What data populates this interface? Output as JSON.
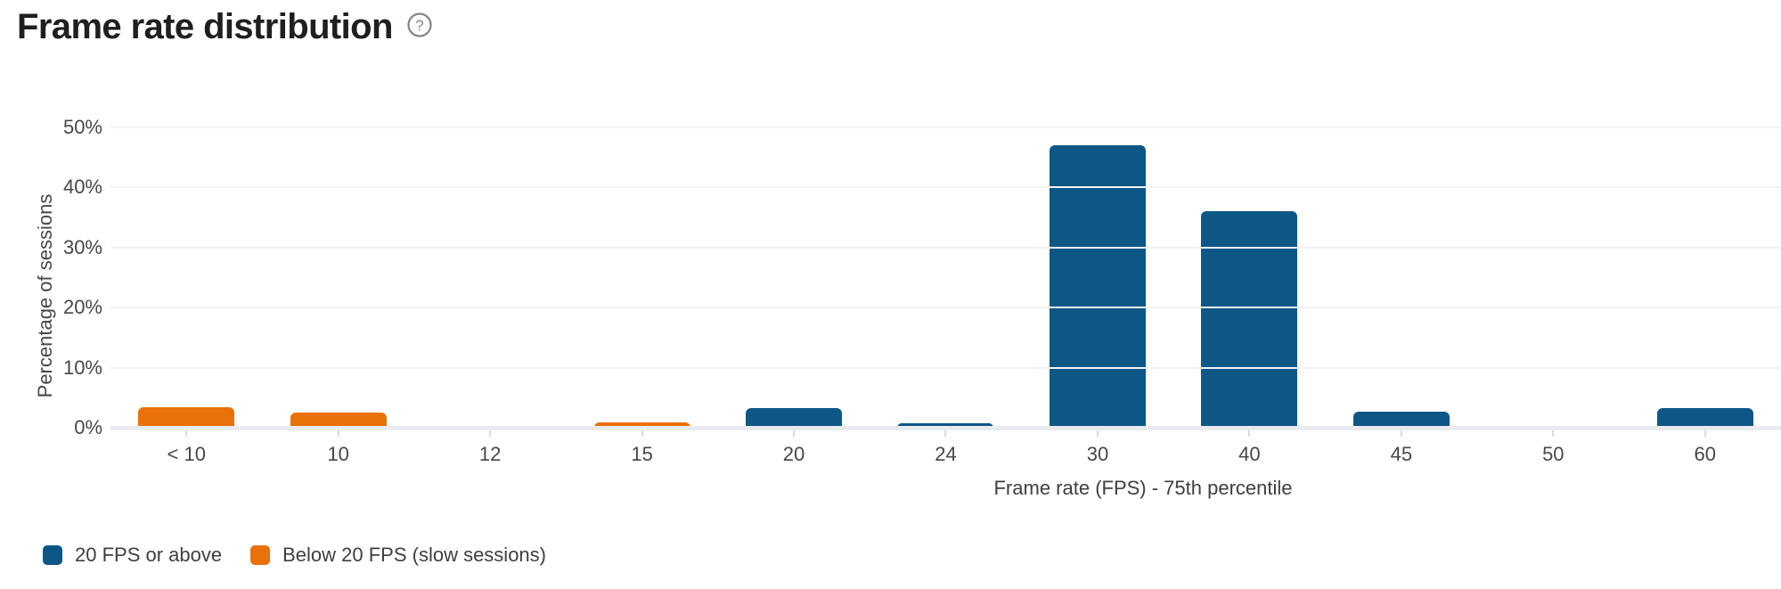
{
  "header": {
    "title": "Frame rate distribution",
    "help_icon_glyph": "?"
  },
  "chart_data": {
    "type": "bar",
    "title": "Frame rate distribution",
    "xlabel": "Frame rate (FPS) - 75th percentile",
    "ylabel": "Percentage of sessions",
    "categories": [
      "< 10",
      "10",
      "12",
      "15",
      "20",
      "24",
      "30",
      "40",
      "45",
      "50",
      "60"
    ],
    "series": [
      {
        "name": "20 FPS or above",
        "color": "#0d5786",
        "values": [
          0,
          0,
          0,
          0,
          3.2,
          0.7,
          47,
          36,
          2.7,
          0,
          3.2
        ]
      },
      {
        "name": "Below 20 FPS (slow sessions)",
        "color": "#e8710a",
        "values": [
          3.4,
          2.5,
          0,
          0.9,
          0,
          0,
          0,
          0,
          0,
          0,
          0
        ]
      }
    ],
    "ylim": [
      0,
      50
    ],
    "ytick_labels": [
      "0%",
      "10%",
      "20%",
      "30%",
      "40%",
      "50%"
    ],
    "yunit": "%",
    "grid": true,
    "legend_position": "bottom-left"
  },
  "colors": {
    "background": "#ffffff",
    "title_text": "#1f1f1f",
    "axis_text": "#474747",
    "gridline": "#f0f2f4",
    "baseline": "#e9ebee",
    "help_icon": "#80868b"
  }
}
